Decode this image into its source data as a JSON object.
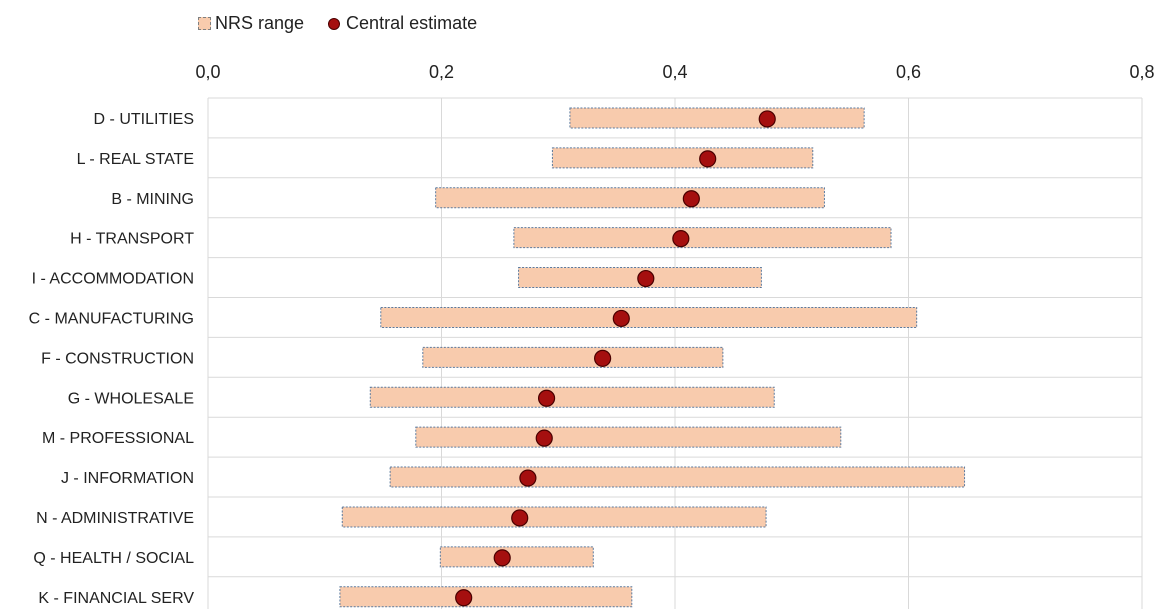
{
  "chart_data": {
    "type": "range-dot",
    "title": "",
    "xlabel": "",
    "ylabel": "",
    "xlim": [
      0,
      0.8
    ],
    "x_ticks": [
      "0,0",
      "0,2",
      "0,4",
      "0,6",
      "0,8"
    ],
    "x_tick_values": [
      0,
      0.2,
      0.4,
      0.6,
      0.8
    ],
    "grid": "vertical",
    "legend_position": "top-left",
    "colors": {
      "range_fill": "#f8cbad",
      "range_border": "#5b7a9e",
      "dot_fill": "#a50f0f",
      "dot_border": "#4a0000"
    },
    "categories": [
      "D - UTILITIES",
      "L - REAL STATE",
      "B - MINING",
      "H - TRANSPORT",
      "I - ACCOMMODATION",
      "C - MANUFACTURING",
      "F - CONSTRUCTION",
      "G - WHOLESALE",
      "M - PROFESSIONAL",
      "J - INFORMATION",
      "N - ADMINISTRATIVE",
      "Q - HEALTH / SOCIAL",
      "K - FINANCIAL SERV"
    ],
    "series": [
      {
        "name": "NRS range",
        "low": [
          0.31,
          0.295,
          0.195,
          0.262,
          0.266,
          0.148,
          0.184,
          0.139,
          0.178,
          0.156,
          0.115,
          0.199,
          0.113
        ],
        "high": [
          0.562,
          0.518,
          0.528,
          0.585,
          0.474,
          0.607,
          0.441,
          0.485,
          0.542,
          0.648,
          0.478,
          0.33,
          0.363
        ]
      },
      {
        "name": "Central estimate",
        "values": [
          0.479,
          0.428,
          0.414,
          0.405,
          0.375,
          0.354,
          0.338,
          0.29,
          0.288,
          0.274,
          0.267,
          0.252,
          0.219
        ]
      }
    ]
  }
}
